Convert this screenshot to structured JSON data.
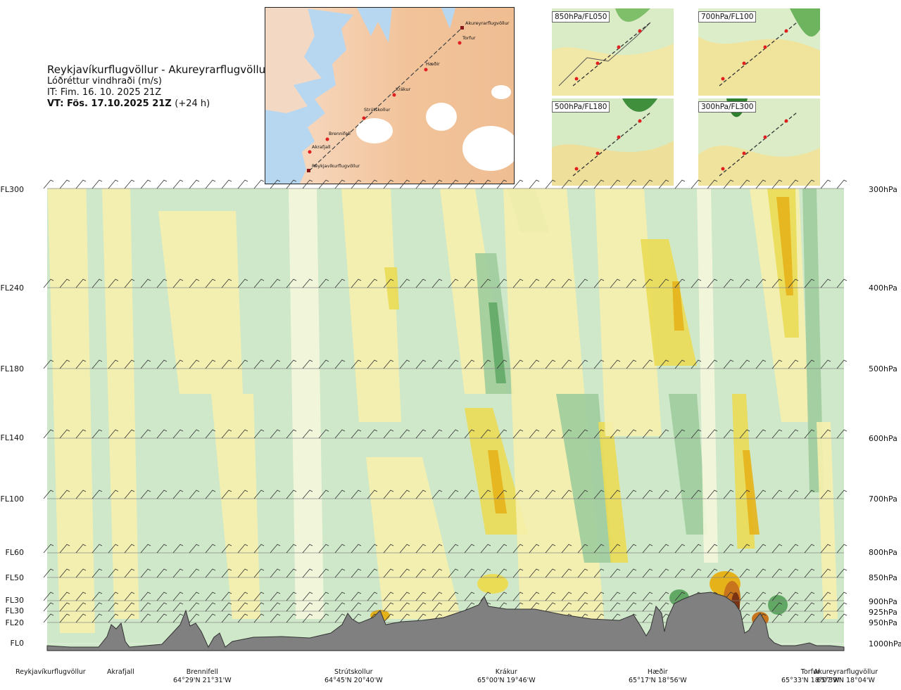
{
  "header": {
    "route": "Reykjavíkurflugvöllur - Akureyrarflugvöllur",
    "parameter": "Lóðréttur vindhraði (m/s)",
    "issue_time": "IT: Fim. 16. 10. 2025 21Z",
    "valid_time": "VT: Fös. 17.10.2025 21Z",
    "valid_offset": "(+24 h)"
  },
  "route_map": {
    "waypoints": [
      "Reykjavíkurflugvöllur",
      "Akrafjall",
      "Brennifell",
      "Strútskollur",
      "Krákur",
      "Hæðir",
      "Torfur",
      "Akureyrarflugvöllur"
    ]
  },
  "mini_maps": [
    "850hPa/FL050",
    "700hPa/FL100",
    "500hPa/FL180",
    "300hPa/FL300"
  ],
  "chart_data": {
    "type": "heatmap",
    "title": "Lóðréttur vindhraði (m/s)",
    "y_left_labels": [
      "FL300",
      "FL240",
      "FL180",
      "FL140",
      "FL100",
      "FL60",
      "FL50",
      "FL30",
      "FL30",
      "FL20",
      "FL0"
    ],
    "y_right_labels": [
      "300hPa",
      "400hPa",
      "500hPa",
      "600hPa",
      "700hPa",
      "800hPa",
      "850hPa",
      "900hPa",
      "925hPa",
      "950hPa",
      "1000hPa"
    ],
    "pressure_levels_hpa": [
      300,
      400,
      500,
      600,
      700,
      800,
      850,
      900,
      925,
      950,
      1000
    ],
    "stations": [
      {
        "name": "Reykjavíkurflugvöllur",
        "coord": ""
      },
      {
        "name": "Akrafjall",
        "coord": ""
      },
      {
        "name": "Brennifell",
        "coord": "64°29'N 21°31'W"
      },
      {
        "name": "Strútskollur",
        "coord": "64°45'N 20°40'W"
      },
      {
        "name": "Krákur",
        "coord": "65°00'N 19°46'W"
      },
      {
        "name": "Hæðir",
        "coord": "65°17'N 18°56'W"
      },
      {
        "name": "Torfur",
        "coord": "65°33'N 18°07'W"
      },
      {
        "name": "Akureyrarflugvöllur",
        "coord": "65°39'N 18°04'W"
      }
    ],
    "colors": {
      "strong_down": "#62a865",
      "mod_down": "#9fcc9d",
      "weak_down": "#cfe8c9",
      "near_zero": "#f4f7dc",
      "weak_up": "#f6efad",
      "mod_up": "#eadc55",
      "strong_up": "#e6b21a",
      "very_strong_up": "#c8741c",
      "extreme_up": "#7a3414",
      "terrain": "#808080"
    }
  }
}
